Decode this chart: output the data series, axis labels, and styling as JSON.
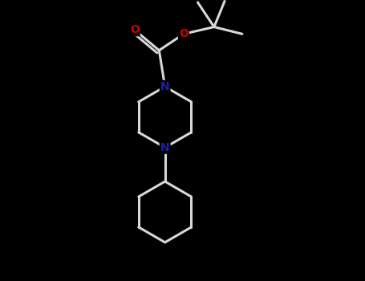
{
  "background_color": "#000000",
  "bond_color": "#d8d8d8",
  "N_color": "#2020aa",
  "O_color": "#cc0000",
  "line_width": 2.2,
  "figsize": [
    4.55,
    3.5
  ],
  "dpi": 100,
  "xlim": [
    -2.2,
    2.5
  ],
  "ylim": [
    -2.8,
    2.0
  ]
}
